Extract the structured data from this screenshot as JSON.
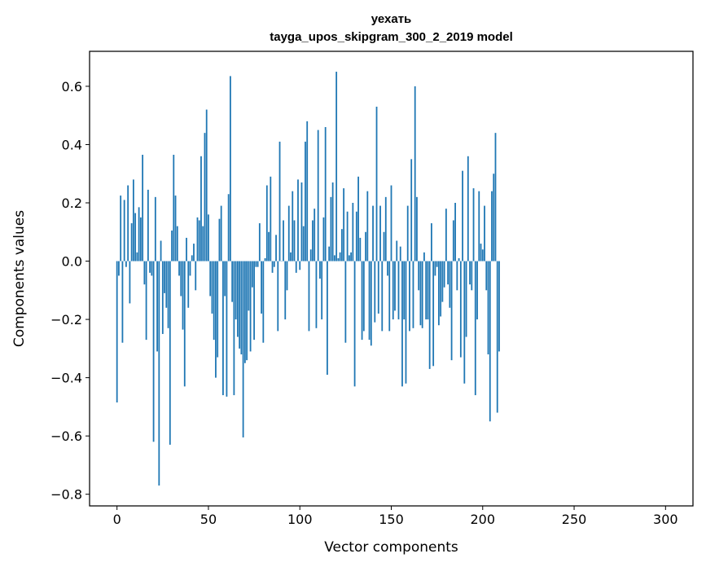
{
  "chart_data": {
    "type": "bar",
    "title_line1": "уехать",
    "title_line2": "tayga_upos_skipgram_300_2_2019 model",
    "xlabel": "Vector components",
    "ylabel": "Components values",
    "xlim": [
      -15,
      315
    ],
    "ylim": [
      -0.84,
      0.72
    ],
    "xticks": [
      0,
      50,
      100,
      150,
      200,
      250,
      300
    ],
    "xtick_labels": [
      "0",
      "50",
      "100",
      "150",
      "200",
      "250",
      "300"
    ],
    "yticks": [
      -0.8,
      -0.6,
      -0.4,
      -0.2,
      0.0,
      0.2,
      0.4,
      0.6
    ],
    "ytick_labels": [
      "−0.8",
      "−0.6",
      "−0.4",
      "−0.2",
      "0.0",
      "0.2",
      "0.4",
      "0.6"
    ],
    "bar_color": "#1f77b4",
    "values": [
      -0.485,
      -0.05,
      0.225,
      -0.28,
      0.21,
      -0.02,
      0.26,
      -0.145,
      0.13,
      0.28,
      0.165,
      0.03,
      0.185,
      0.15,
      0.365,
      -0.08,
      -0.27,
      0.245,
      -0.04,
      -0.05,
      -0.62,
      0.22,
      -0.31,
      -0.77,
      0.07,
      -0.25,
      -0.11,
      -0.16,
      -0.23,
      -0.63,
      0.105,
      0.365,
      0.225,
      0.12,
      -0.05,
      -0.12,
      -0.235,
      -0.43,
      0.08,
      -0.16,
      -0.05,
      0.02,
      0.06,
      -0.1,
      0.15,
      0.14,
      0.36,
      0.12,
      0.44,
      0.52,
      0.16,
      -0.12,
      -0.18,
      -0.27,
      -0.4,
      -0.33,
      0.145,
      0.19,
      -0.46,
      -0.12,
      -0.465,
      0.23,
      0.635,
      -0.14,
      -0.46,
      -0.2,
      -0.26,
      -0.3,
      -0.32,
      -0.605,
      -0.35,
      -0.34,
      -0.17,
      -0.31,
      -0.09,
      -0.27,
      -0.02,
      -0.02,
      0.13,
      -0.18,
      -0.28,
      0.01,
      0.26,
      0.1,
      0.29,
      -0.04,
      -0.02,
      0.09,
      -0.24,
      0.41,
      0.0,
      0.14,
      -0.2,
      -0.1,
      0.19,
      0.03,
      0.24,
      0.14,
      -0.04,
      0.28,
      -0.03,
      0.27,
      0.12,
      0.41,
      0.48,
      -0.24,
      0.04,
      0.14,
      0.18,
      -0.23,
      0.45,
      -0.06,
      -0.2,
      0.15,
      0.46,
      -0.39,
      0.05,
      0.22,
      0.27,
      0.02,
      0.65,
      0.01,
      0.03,
      0.11,
      0.25,
      -0.28,
      0.17,
      0.02,
      0.03,
      0.2,
      -0.43,
      0.17,
      0.29,
      0.08,
      -0.27,
      -0.24,
      0.1,
      0.24,
      -0.27,
      -0.29,
      0.19,
      -0.21,
      0.53,
      -0.18,
      0.19,
      -0.24,
      0.1,
      0.22,
      -0.05,
      -0.24,
      0.26,
      -0.2,
      -0.17,
      0.07,
      -0.2,
      0.05,
      -0.43,
      -0.2,
      -0.42,
      0.19,
      -0.24,
      0.35,
      -0.23,
      0.6,
      0.22,
      -0.1,
      -0.22,
      -0.23,
      0.03,
      -0.2,
      -0.2,
      -0.37,
      0.13,
      -0.36,
      -0.05,
      -0.02,
      -0.22,
      -0.19,
      -0.14,
      -0.09,
      0.18,
      -0.08,
      -0.16,
      -0.34,
      0.14,
      0.2,
      -0.1,
      0.01,
      -0.33,
      0.31,
      -0.42,
      -0.26,
      0.36,
      -0.08,
      -0.1,
      0.25,
      -0.46,
      -0.2,
      0.24,
      0.06,
      0.04,
      0.19,
      -0.1,
      -0.32,
      -0.55,
      0.24,
      0.3,
      0.44,
      -0.52,
      -0.31
    ]
  }
}
